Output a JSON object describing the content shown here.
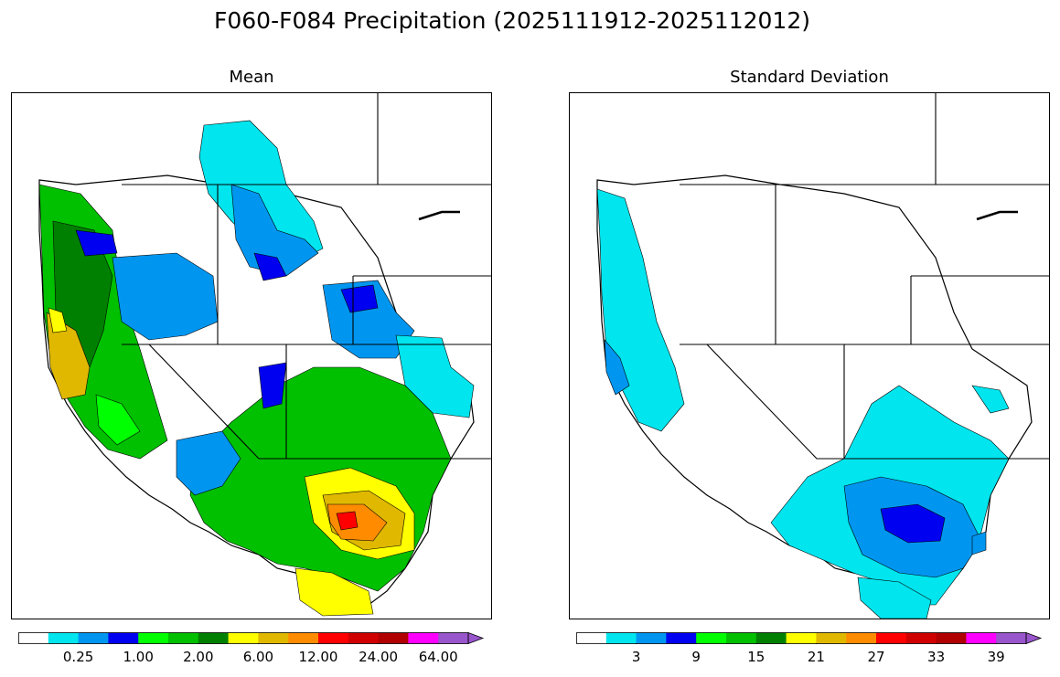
{
  "title": "F060-F084 Precipitation (2025111912-2025112012)",
  "panels": [
    {
      "title": "Mean",
      "colorbar": {
        "colors": [
          "#ffffff",
          "#00e5ee",
          "#0096f0",
          "#0000f0",
          "#00ff00",
          "#00c000",
          "#008000",
          "#ffff00",
          "#e0b800",
          "#ff8c00",
          "#ff0000",
          "#d00000",
          "#b00000",
          "#ff00ff",
          "#9955cc"
        ],
        "labels": [
          "0.25",
          "1.00",
          "2.00",
          "6.00",
          "12.00",
          "24.00",
          "64.00"
        ],
        "label_bins": [
          1,
          3,
          5,
          7,
          9,
          11,
          13
        ]
      }
    },
    {
      "title": "Standard Deviation",
      "colorbar": {
        "colors": [
          "#ffffff",
          "#00e5ee",
          "#0096f0",
          "#0000f0",
          "#00ff00",
          "#00c000",
          "#008000",
          "#ffff00",
          "#e0b800",
          "#ff8c00",
          "#ff0000",
          "#d00000",
          "#b00000",
          "#ff00ff",
          "#9955cc"
        ],
        "labels": [
          "3",
          "9",
          "15",
          "21",
          "27",
          "33",
          "39"
        ],
        "label_bins": [
          1,
          3,
          5,
          7,
          9,
          11,
          13
        ]
      }
    }
  ]
}
